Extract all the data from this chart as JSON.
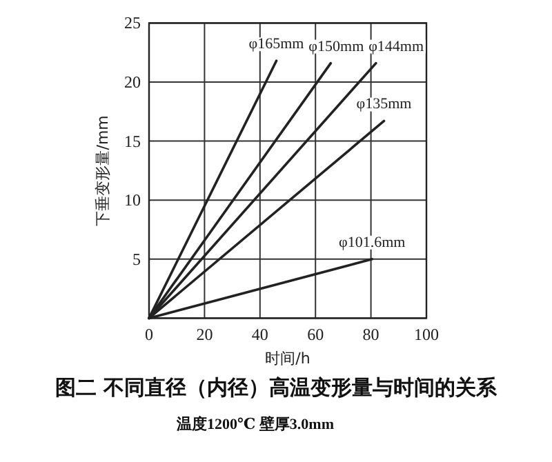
{
  "chart_data": {
    "type": "line",
    "title": "图二  不同直径（内径）高温变形量与时间的关系",
    "subtitle": "温度1200℃  壁厚3.0mm",
    "xlabel": "时间/h",
    "ylabel": "下垂变形量/mm",
    "xlim": [
      0,
      100
    ],
    "xticks": [
      0,
      20,
      40,
      60,
      80,
      100
    ],
    "ylim": [
      0,
      25
    ],
    "yticks": [
      {
        "value": 0,
        "label": null
      },
      5,
      10,
      15,
      20,
      25
    ],
    "grid": true,
    "marker": "none",
    "line_style": "solid",
    "series": [
      {
        "name": "φ165mm",
        "color": "#222222",
        "x": [
          0,
          45.9
        ],
        "values": [
          0,
          21.8
        ]
      },
      {
        "name": "φ150mm",
        "color": "#222222",
        "x": [
          0,
          65.5
        ],
        "values": [
          0,
          21.6
        ]
      },
      {
        "name": "φ144mm",
        "color": "#222222",
        "x": [
          0,
          81.8
        ],
        "values": [
          0,
          21.6
        ]
      },
      {
        "name": "φ135mm",
        "color": "#222222",
        "x": [
          0,
          84.7
        ],
        "values": [
          0,
          16.7
        ]
      },
      {
        "name": "φ101.6mm",
        "color": "#222222",
        "x": [
          0,
          80.4
        ],
        "values": [
          0,
          5.0
        ]
      }
    ]
  }
}
